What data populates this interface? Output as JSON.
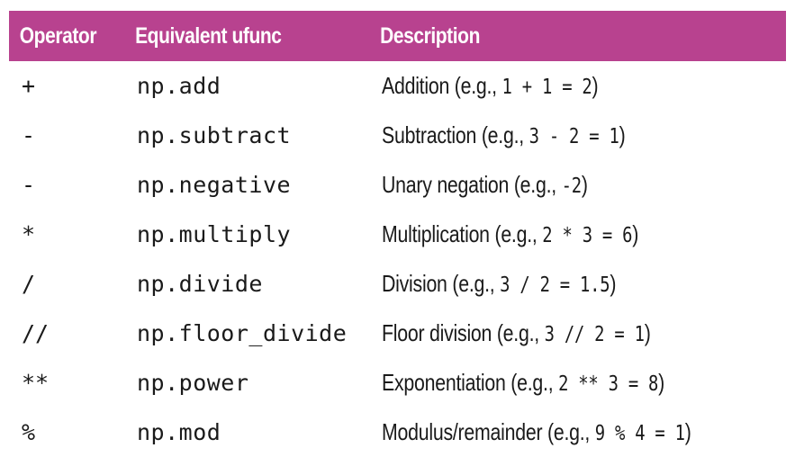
{
  "table": {
    "headers": [
      "Operator",
      "Equivalent ufunc",
      "Description"
    ],
    "rows": [
      {
        "operator": "+",
        "ufunc": "np.add",
        "desc_prefix": "Addition (e.g., ",
        "example": "1 + 1 = 2",
        "desc_suffix": ")"
      },
      {
        "operator": "-",
        "ufunc": "np.subtract",
        "desc_prefix": "Subtraction (e.g., ",
        "example": "3 - 2 = 1",
        "desc_suffix": ")"
      },
      {
        "operator": "-",
        "ufunc": "np.negative",
        "desc_prefix": "Unary negation (e.g., ",
        "example": "-2",
        "desc_suffix": ")"
      },
      {
        "operator": "*",
        "ufunc": "np.multiply",
        "desc_prefix": "Multiplication (e.g., ",
        "example": "2 * 3 = 6",
        "desc_suffix": ")"
      },
      {
        "operator": "/",
        "ufunc": "np.divide",
        "desc_prefix": "Division (e.g., ",
        "example": "3 / 2 = 1.5",
        "desc_suffix": ")"
      },
      {
        "operator": "//",
        "ufunc": "np.floor_divide",
        "desc_prefix": "Floor division (e.g., ",
        "example": "3 // 2 = 1",
        "desc_suffix": ")"
      },
      {
        "operator": "**",
        "ufunc": "np.power",
        "desc_prefix": "Exponentiation (e.g., ",
        "example": "2 ** 3 = 8",
        "desc_suffix": ")"
      },
      {
        "operator": "%",
        "ufunc": "np.mod",
        "desc_prefix": "Modulus/remainder (e.g., ",
        "example": "9 % 4 = 1",
        "desc_suffix": ")"
      }
    ]
  },
  "colors": {
    "header_bg": "#b8428f",
    "header_text": "#ffffff",
    "body_text": "#1a1a1a"
  }
}
